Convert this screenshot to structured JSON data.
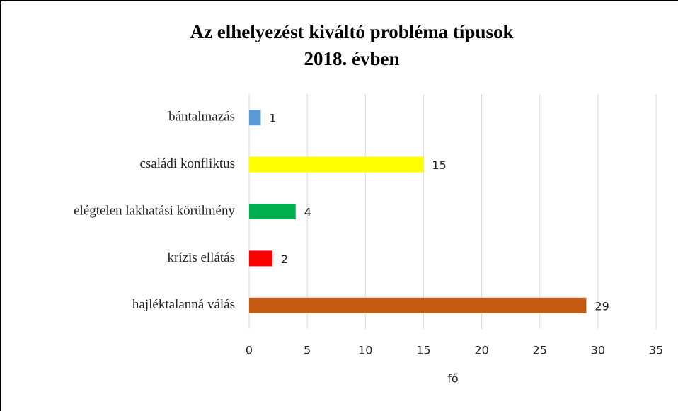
{
  "chart_data": {
    "type": "bar",
    "orientation": "horizontal",
    "title": [
      "Az elhelyezést kiváltó probléma típusok",
      "2018. évben"
    ],
    "categories": [
      "bántalmazás",
      "családi konfliktus",
      "elégtelen lakhatási körülmény",
      "krízis ellátás",
      "hajléktalanná válás"
    ],
    "values": [
      1,
      15,
      4,
      2,
      29
    ],
    "colors": [
      "#5b9bd5",
      "#ffff00",
      "#00b050",
      "#ff0000",
      "#c55a11"
    ],
    "xlabel": "fő",
    "xlim": [
      0,
      35
    ],
    "xticks": [
      0,
      5,
      10,
      15,
      20,
      25,
      30,
      35
    ],
    "grid": true
  }
}
